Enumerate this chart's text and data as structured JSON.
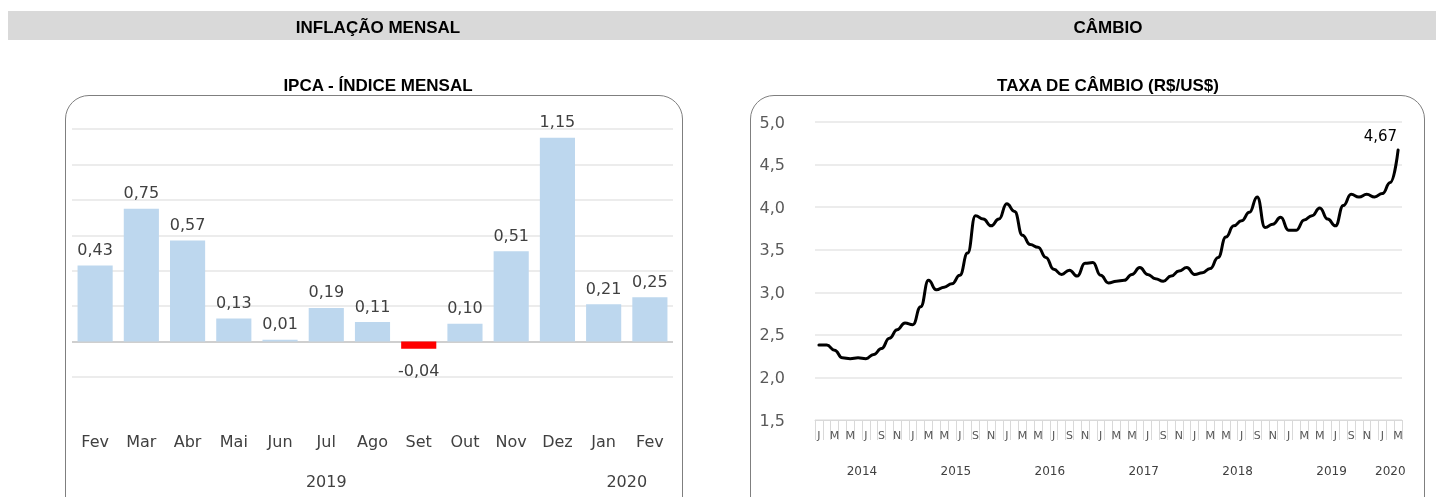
{
  "chart_data": [
    {
      "type": "bar",
      "title": "INFLAÇÃO MENSAL",
      "subtitle": "IPCA - ÍNDICE MENSAL",
      "categories": [
        "Fev",
        "Mar",
        "Abr",
        "Mai",
        "Jun",
        "Jul",
        "Ago",
        "Set",
        "Out",
        "Nov",
        "Dez",
        "Jan",
        "Fev"
      ],
      "values": [
        0.43,
        0.75,
        0.57,
        0.13,
        0.01,
        0.19,
        0.11,
        -0.04,
        0.1,
        0.51,
        1.15,
        0.21,
        0.25
      ],
      "colors": [
        "#bdd7ee",
        "#bdd7ee",
        "#bdd7ee",
        "#bdd7ee",
        "#bdd7ee",
        "#bdd7ee",
        "#bdd7ee",
        "#ff0000",
        "#bdd7ee",
        "#bdd7ee",
        "#bdd7ee",
        "#bdd7ee",
        "#bdd7ee"
      ],
      "value_labels": [
        "0,43",
        "0,75",
        "0,57",
        "0,13",
        "0,01",
        "0,19",
        "0,11",
        "-0,04",
        "0,10",
        "0,51",
        "1,15",
        "0,21",
        "0,25"
      ],
      "yticks": [
        {
          "value": -0.2,
          "label": null
        },
        {
          "value": 0,
          "label": null
        },
        {
          "value": 0.2,
          "label": null
        },
        {
          "value": 0.4,
          "label": null
        },
        {
          "value": 0.6,
          "label": null
        },
        {
          "value": 0.8,
          "label": null
        },
        {
          "value": 1.0,
          "label": null
        },
        {
          "value": 1.2,
          "label": null
        }
      ],
      "tick_labels": "x",
      "grid": "y",
      "annotations": [
        "2019",
        "2020"
      ]
    },
    {
      "type": "line",
      "title": "CÂMBIO",
      "subtitle": "TAXA DE CÂMBIO (R$/US$)",
      "categories": [
        "J",
        null,
        "M",
        null,
        "M",
        null,
        "J",
        null,
        "S",
        null,
        "N",
        null,
        "J",
        null,
        "M",
        null,
        "M",
        null,
        "J",
        null,
        "S",
        null,
        "N",
        null,
        "J",
        null,
        "M",
        null,
        "M",
        null,
        "J",
        null,
        "S",
        null,
        "N",
        null,
        "J",
        null,
        "M",
        null,
        "M",
        null,
        "J",
        null,
        "S",
        null,
        "N",
        null,
        "J",
        null,
        "M",
        null,
        "M",
        null,
        "J",
        null,
        "S",
        null,
        "N",
        null,
        "J",
        null,
        "M",
        null,
        "M",
        null,
        "J",
        null,
        "S",
        null,
        "N",
        null,
        "J",
        null,
        "M"
      ],
      "series": [
        {
          "color": "#000000",
          "values": [
            2.38,
            2.38,
            2.32,
            2.23,
            2.22,
            2.23,
            2.22,
            2.27,
            2.34,
            2.46,
            2.56,
            2.64,
            2.62,
            2.83,
            3.14,
            3.03,
            3.06,
            3.1,
            3.2,
            3.46,
            3.9,
            3.86,
            3.78,
            3.86,
            4.04,
            3.95,
            3.67,
            3.56,
            3.53,
            3.41,
            3.27,
            3.21,
            3.26,
            3.19,
            3.34,
            3.35,
            3.2,
            3.11,
            3.13,
            3.14,
            3.21,
            3.29,
            3.21,
            3.16,
            3.13,
            3.19,
            3.25,
            3.29,
            3.21,
            3.23,
            3.28,
            3.41,
            3.65,
            3.78,
            3.84,
            3.94,
            4.12,
            3.76,
            3.8,
            3.88,
            3.73,
            3.73,
            3.85,
            3.9,
            3.99,
            3.86,
            3.78,
            4.02,
            4.15,
            4.12,
            4.15,
            4.12,
            4.16,
            4.29,
            4.67
          ],
          "value_labels": [
            null,
            null,
            null,
            null,
            null,
            null,
            null,
            null,
            null,
            null,
            null,
            null,
            null,
            null,
            null,
            null,
            null,
            null,
            null,
            null,
            null,
            null,
            null,
            null,
            null,
            null,
            null,
            null,
            null,
            null,
            null,
            null,
            null,
            null,
            null,
            null,
            null,
            null,
            null,
            null,
            null,
            null,
            null,
            null,
            null,
            null,
            null,
            null,
            null,
            null,
            null,
            null,
            null,
            null,
            null,
            null,
            null,
            null,
            null,
            null,
            null,
            null,
            null,
            null,
            null,
            null,
            null,
            null,
            null,
            null,
            null,
            null,
            null,
            null,
            "4,67"
          ]
        }
      ],
      "ylim": [
        1.5,
        5.0
      ],
      "yticks": [
        {
          "value": 1.5,
          "label": "1,5"
        },
        {
          "value": 2.0,
          "label": "2,0"
        },
        {
          "value": 2.5,
          "label": "2,5"
        },
        {
          "value": 3.0,
          "label": "3,0"
        },
        {
          "value": 3.5,
          "label": "3,5"
        },
        {
          "value": 4.0,
          "label": "4,0"
        },
        {
          "value": 4.5,
          "label": "4,5"
        },
        {
          "value": 5.0,
          "label": "5,0"
        }
      ],
      "grid": "y",
      "marker": "none",
      "line_style": "solid",
      "annotations": [
        "2014",
        "2015",
        "2016",
        "2017",
        "2018",
        "2019",
        "2020"
      ]
    }
  ]
}
